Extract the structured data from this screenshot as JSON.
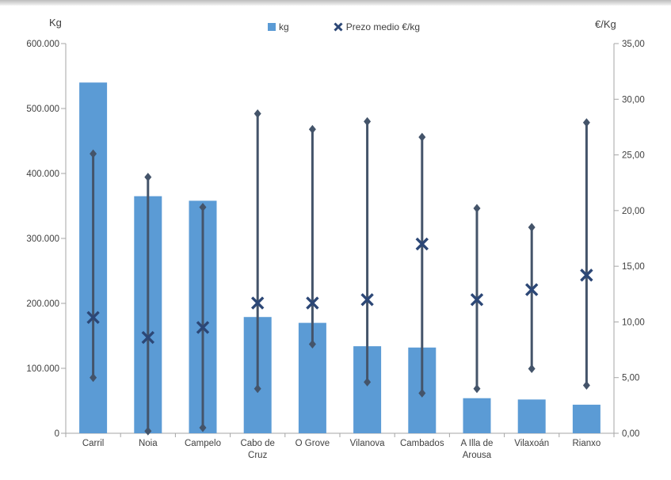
{
  "chart_data": {
    "type": "bar",
    "subtype": "combo-bar-with-price-range-markers",
    "title": "",
    "categories": [
      "Carril",
      "Noia",
      "Campelo",
      "Cabo de Cruz",
      "O Grove",
      "Vilanova",
      "Cambados",
      "A Illa de Arousa",
      "Vilaxoán",
      "Rianxo"
    ],
    "series": [
      {
        "name": "kg",
        "type": "bar",
        "axis": "left",
        "color": "#5B9BD5",
        "values": [
          540000,
          365000,
          358000,
          179000,
          170000,
          134000,
          132000,
          54000,
          52000,
          44000
        ]
      },
      {
        "name": "Prezo medio €/kg",
        "type": "x-marker-with-range-line",
        "axis": "right",
        "color": "#2C4776",
        "line_color": "#44546A",
        "values": [
          10.4,
          8.6,
          9.5,
          11.7,
          11.7,
          12.0,
          17.0,
          12.0,
          12.9,
          14.2
        ],
        "range_high": [
          25.1,
          23.0,
          20.3,
          28.7,
          27.3,
          28.0,
          26.6,
          20.2,
          18.5,
          27.9
        ],
        "range_low": [
          5.0,
          0.2,
          0.5,
          4.0,
          8.0,
          4.6,
          3.6,
          4.0,
          5.8,
          4.3
        ]
      }
    ],
    "left_axis": {
      "title": "Kg",
      "min": 0,
      "max": 600000,
      "step": 100000,
      "labels": [
        "0",
        "100.000",
        "200.000",
        "300.000",
        "400.000",
        "500.000",
        "600.000"
      ]
    },
    "right_axis": {
      "title": "€/Kg",
      "min": 0,
      "max": 35,
      "step": 5,
      "labels": [
        "0,00",
        "5,00",
        "10,00",
        "15,00",
        "20,00",
        "25,00",
        "30,00",
        "35,00"
      ]
    },
    "layout": {
      "grid": "off",
      "legend_position": "top-center",
      "axis_color": "#A6A6A6",
      "text_color": "#3F3F3F"
    }
  }
}
